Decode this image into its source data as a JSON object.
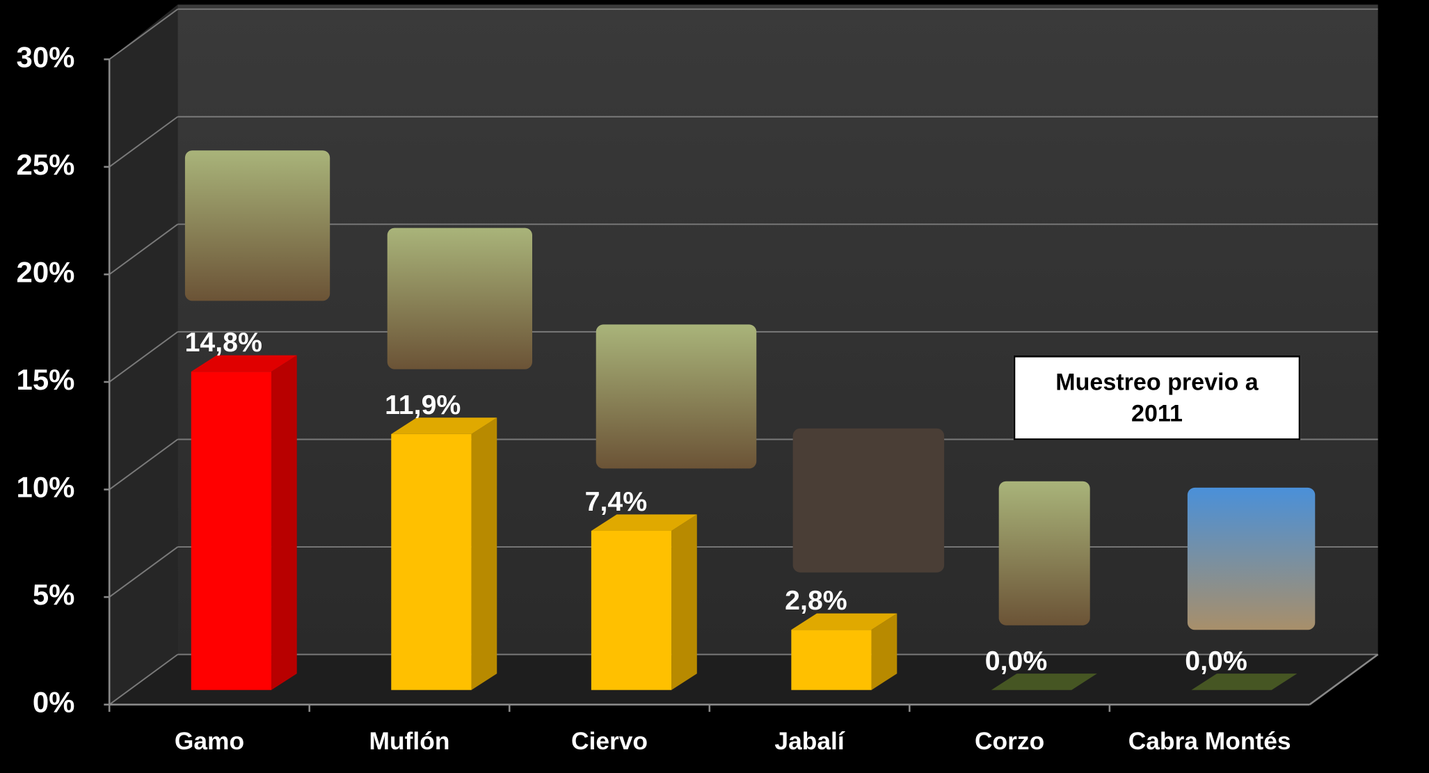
{
  "chart_data": {
    "type": "bar",
    "categories": [
      "Gamo",
      "Muflón",
      "Ciervo",
      "Jabalí",
      "Corzo",
      "Cabra Montés"
    ],
    "values": [
      14.8,
      11.9,
      7.4,
      2.8,
      0,
      0
    ],
    "value_labels": [
      "14,8%",
      "11,9%",
      "7,4%",
      "2,8%",
      "0,0%",
      "0,0%"
    ],
    "colors": [
      "#ff0000",
      "#ffc000",
      "#ffc000",
      "#ffc000",
      "#4f6228",
      "#4f6228"
    ],
    "ylim": [
      0,
      30
    ],
    "yticks": [
      {
        "value": 0,
        "label": "0%"
      },
      {
        "value": 5,
        "label": "5%"
      },
      {
        "value": 10,
        "label": "10%"
      },
      {
        "value": 15,
        "label": "15%"
      },
      {
        "value": 20,
        "label": "20%"
      },
      {
        "value": 25,
        "label": "25%"
      },
      {
        "value": 30,
        "label": "30%"
      }
    ],
    "annotation": "Muestreo previo a 2011",
    "grid": true
  }
}
